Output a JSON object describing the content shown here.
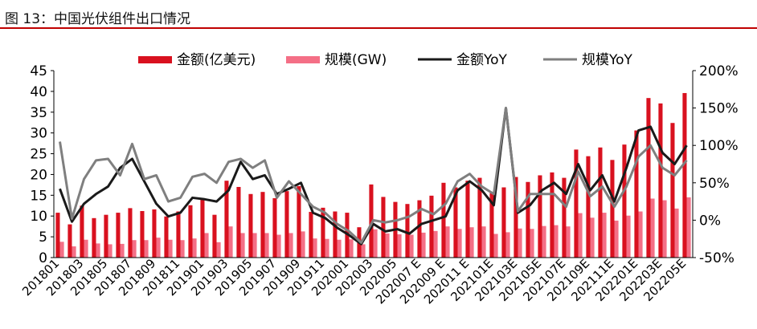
{
  "figure": {
    "title": "图 13：中国光伏组件出口情况",
    "rule_color": "#c00000"
  },
  "chart_data": {
    "type": "bar",
    "categories": [
      "201801",
      "201802",
      "201803",
      "201804",
      "201805",
      "201806",
      "201807",
      "201808",
      "201809",
      "201810",
      "201811",
      "201812",
      "201901",
      "201902",
      "201903",
      "201904",
      "201905",
      "201906",
      "201907",
      "201908",
      "201909",
      "201910",
      "201911",
      "201912",
      "202001",
      "202002",
      "202003",
      "202004",
      "202005",
      "202006",
      "202007 E",
      "202008 E",
      "202009 E",
      "202010 E",
      "202011 E",
      "202012 E",
      "202101E",
      "202102E",
      "202103E",
      "202104E",
      "202105E",
      "202106E",
      "202107E",
      "202108E",
      "202109E",
      "202110E",
      "202111E",
      "202112E",
      "202201E",
      "202202E",
      "202203E",
      "202204E",
      "202205E"
    ],
    "tick_labels": [
      "201801",
      "201803",
      "201805",
      "201807",
      "201809",
      "201811",
      "201901",
      "201903",
      "201905",
      "201907",
      "201909",
      "201911",
      "202001",
      "202003",
      "202005",
      "202007 E",
      "202009 E",
      "202011 E",
      "202101E",
      "202103E",
      "202105E",
      "202107E",
      "202109E",
      "202111E",
      "202201E",
      "202203E",
      "202205E"
    ],
    "series": [
      {
        "name": "金额(亿美元)",
        "axis": "left",
        "kind": "bar",
        "color": "#d9111f",
        "values": [
          10.8,
          8.0,
          12.5,
          9.5,
          10.3,
          10.8,
          11.9,
          11.2,
          11.6,
          9.9,
          11.1,
          12.6,
          14.1,
          10.3,
          18.5,
          17.0,
          15.3,
          15.8,
          14.3,
          16.0,
          17.2,
          11.0,
          12.0,
          11.1,
          10.8,
          7.3,
          17.6,
          14.6,
          13.4,
          12.9,
          13.8,
          14.9,
          18.0,
          16.9,
          18.5,
          19.2,
          15.5,
          16.9,
          19.4,
          18.2,
          19.8,
          20.5,
          19.2,
          26.0,
          24.4,
          26.5,
          23.5,
          27.2,
          30.6,
          38.4,
          37.1,
          32.4,
          39.6
        ]
      },
      {
        "name": "规模(GW)",
        "axis": "left",
        "kind": "bar",
        "color": "#f46f86",
        "values": [
          3.8,
          2.7,
          4.3,
          3.4,
          3.2,
          3.3,
          4.2,
          4.2,
          4.8,
          4.3,
          4.2,
          4.6,
          5.9,
          3.7,
          7.5,
          5.9,
          5.9,
          5.9,
          5.5,
          5.9,
          6.3,
          4.6,
          4.5,
          4.3,
          4.4,
          3.2,
          6.8,
          5.8,
          5.6,
          5.5,
          6.0,
          6.4,
          7.5,
          6.9,
          7.3,
          7.5,
          5.7,
          6.1,
          7.0,
          6.9,
          7.6,
          7.8,
          7.5,
          10.7,
          9.6,
          10.8,
          8.9,
          10.1,
          11.1,
          14.2,
          13.8,
          11.8,
          14.5
        ]
      },
      {
        "name": "金额YoY",
        "axis": "right",
        "kind": "line",
        "color": "#1a1a1a",
        "values": [
          42,
          -2,
          22,
          35,
          45,
          70,
          82,
          52,
          22,
          5,
          10,
          30,
          28,
          25,
          40,
          78,
          55,
          60,
          35,
          42,
          50,
          10,
          3,
          -10,
          -20,
          -32,
          -5,
          -15,
          -12,
          -18,
          -5,
          0,
          5,
          40,
          52,
          40,
          20,
          150,
          10,
          20,
          40,
          50,
          35,
          75,
          40,
          60,
          25,
          70,
          120,
          125,
          90,
          75,
          100
        ]
      },
      {
        "name": "规模YoY",
        "axis": "right",
        "kind": "line",
        "color": "#7f7f7f",
        "values": [
          105,
          2,
          55,
          80,
          82,
          60,
          102,
          55,
          60,
          25,
          30,
          58,
          62,
          50,
          78,
          82,
          70,
          80,
          30,
          52,
          35,
          18,
          10,
          -5,
          -15,
          -30,
          0,
          -3,
          0,
          5,
          15,
          8,
          22,
          52,
          62,
          45,
          35,
          150,
          12,
          35,
          35,
          35,
          18,
          65,
          32,
          45,
          18,
          45,
          85,
          100,
          70,
          60,
          80
        ]
      }
    ],
    "ylim_left": [
      0,
      45
    ],
    "yticks_left": [
      "0",
      "5",
      "10",
      "15",
      "20",
      "25",
      "30",
      "35",
      "40",
      "45"
    ],
    "ylim_right": [
      -50,
      200
    ],
    "yticks_right": [
      "-50%",
      "0%",
      "50%",
      "100%",
      "150%",
      "200%"
    ],
    "grid": false,
    "legend_position": "top"
  }
}
